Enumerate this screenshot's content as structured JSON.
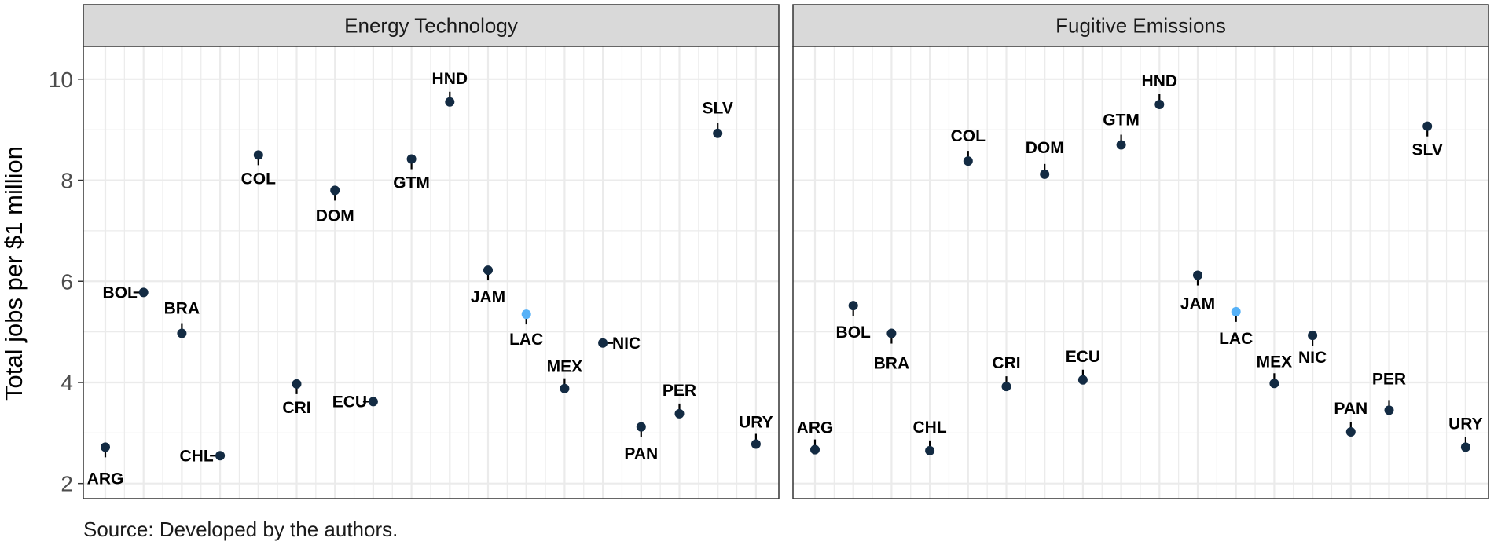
{
  "chart_data": {
    "type": "scatter",
    "ylabel": "Total jobs per $1 million",
    "ylim": [
      1.7,
      10.65
    ],
    "yticks": [
      2,
      4,
      6,
      8,
      10
    ],
    "grid": true,
    "caption": "Source: Developed by the authors.",
    "colors": {
      "point": "#132b43",
      "highlight": "#56b1f7",
      "strip": "#d9d9d9",
      "grid": "#ebebeb",
      "border": "#333333"
    },
    "panels": [
      {
        "name": "Energy Technology",
        "points": [
          {
            "label": "ARG",
            "y": 2.72
          },
          {
            "label": "BOL",
            "y": 5.78
          },
          {
            "label": "BRA",
            "y": 4.97
          },
          {
            "label": "CHL",
            "y": 2.55
          },
          {
            "label": "COL",
            "y": 8.5
          },
          {
            "label": "CRI",
            "y": 3.97
          },
          {
            "label": "DOM",
            "y": 7.8
          },
          {
            "label": "ECU",
            "y": 3.62
          },
          {
            "label": "GTM",
            "y": 8.42
          },
          {
            "label": "HND",
            "y": 9.55
          },
          {
            "label": "JAM",
            "y": 6.22
          },
          {
            "label": "LAC",
            "y": 5.35,
            "highlight": true
          },
          {
            "label": "MEX",
            "y": 3.88
          },
          {
            "label": "NIC",
            "y": 4.78
          },
          {
            "label": "PAN",
            "y": 3.12
          },
          {
            "label": "PER",
            "y": 3.38
          },
          {
            "label": "SLV",
            "y": 8.93
          },
          {
            "label": "URY",
            "y": 2.78
          }
        ]
      },
      {
        "name": "Fugitive Emissions",
        "points": [
          {
            "label": "ARG",
            "y": 2.67
          },
          {
            "label": "BOL",
            "y": 5.52
          },
          {
            "label": "BRA",
            "y": 4.97
          },
          {
            "label": "CHL",
            "y": 2.65
          },
          {
            "label": "COL",
            "y": 8.38
          },
          {
            "label": "CRI",
            "y": 3.92
          },
          {
            "label": "DOM",
            "y": 8.12
          },
          {
            "label": "ECU",
            "y": 4.05
          },
          {
            "label": "GTM",
            "y": 8.7
          },
          {
            "label": "HND",
            "y": 9.5
          },
          {
            "label": "JAM",
            "y": 6.12
          },
          {
            "label": "LAC",
            "y": 5.4,
            "highlight": true
          },
          {
            "label": "MEX",
            "y": 3.98
          },
          {
            "label": "NIC",
            "y": 4.93
          },
          {
            "label": "PAN",
            "y": 3.02
          },
          {
            "label": "PER",
            "y": 3.45
          },
          {
            "label": "SLV",
            "y": 9.07
          },
          {
            "label": "URY",
            "y": 2.72
          }
        ]
      }
    ]
  }
}
